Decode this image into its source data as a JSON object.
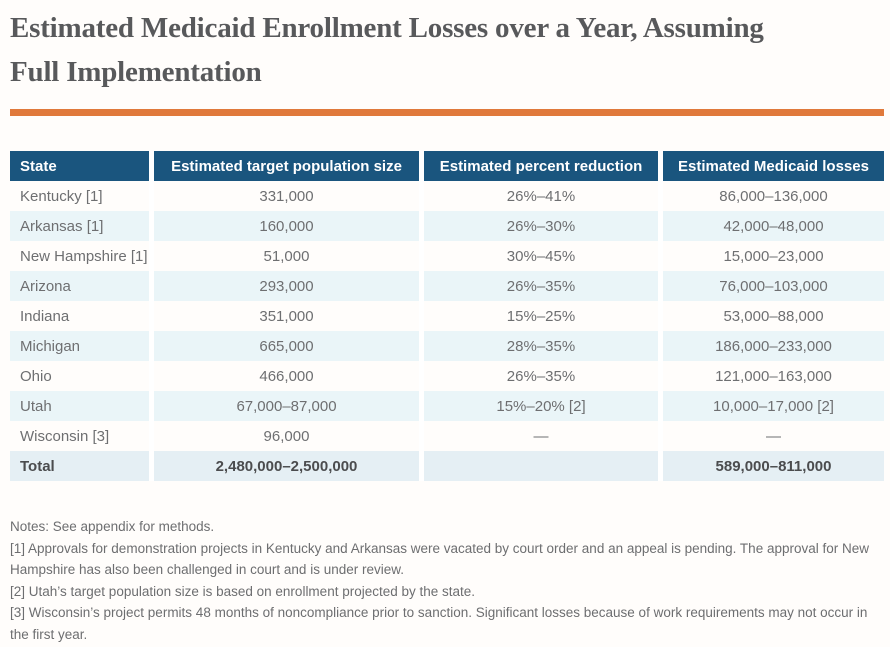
{
  "theme": {
    "page-bg": "#fffdfb",
    "accent": "#E0793B",
    "header-blue": "#1A557E",
    "row-stripe": "#EAF5F8",
    "total-row-bg": "#E5EFF4",
    "title-gray": "#58595B",
    "body-gray": "#6E6F71",
    "total-gray": "#4B4C4E",
    "note-gray": "#6D6E70"
  },
  "page": {
    "title_lines": [
      "Estimated Medicaid Enrollment Losses over a Year, Assuming",
      "Full Implementation"
    ]
  },
  "table": {
    "columns": [
      "State",
      "Estimated target population size",
      "Estimated percent reduction",
      "Estimated Medicaid losses"
    ],
    "rows": [
      {
        "state": "Kentucky [1]",
        "population": "331,000",
        "reduction": "26%–41%",
        "losses": "86,000–136,000"
      },
      {
        "state": "Arkansas [1]",
        "population": "160,000",
        "reduction": "26%–30%",
        "losses": "42,000–48,000"
      },
      {
        "state": "New Hampshire [1]",
        "population": "51,000",
        "reduction": "30%–45%",
        "losses": "15,000–23,000"
      },
      {
        "state": "Arizona",
        "population": "293,000",
        "reduction": "26%–35%",
        "losses": "76,000–103,000"
      },
      {
        "state": "Indiana",
        "population": "351,000",
        "reduction": "15%–25%",
        "losses": "53,000–88,000"
      },
      {
        "state": "Michigan",
        "population": "665,000",
        "reduction": "28%–35%",
        "losses": "186,000–233,000"
      },
      {
        "state": "Ohio",
        "population": "466,000",
        "reduction": "26%–35%",
        "losses": "121,000–163,000"
      },
      {
        "state": "Utah",
        "population": "67,000–87,000",
        "reduction": "15%–20% [2]",
        "losses": "10,000–17,000 [2]"
      },
      {
        "state": "Wisconsin [3]",
        "population": "96,000",
        "reduction": "—",
        "losses": "—"
      }
    ],
    "total_row": {
      "state": "Total",
      "population": "2,480,000–2,500,000",
      "reduction": "",
      "losses": "589,000–811,000"
    }
  },
  "notes": {
    "paragraphs": [
      "Notes: See appendix for methods.",
      "[1] Approvals for demonstration projects in Kentucky and Arkansas were vacated by court order and an appeal is pending. The approval for New Hampshire has also been challenged in court and is under review.",
      "[2] Utah’s target population size is based on enrollment projected by the state.",
      "[3] Wisconsin’s project permits 48 months of noncompliance prior to sanction. Significant losses because of work requirements may not occur in the first year."
    ]
  }
}
